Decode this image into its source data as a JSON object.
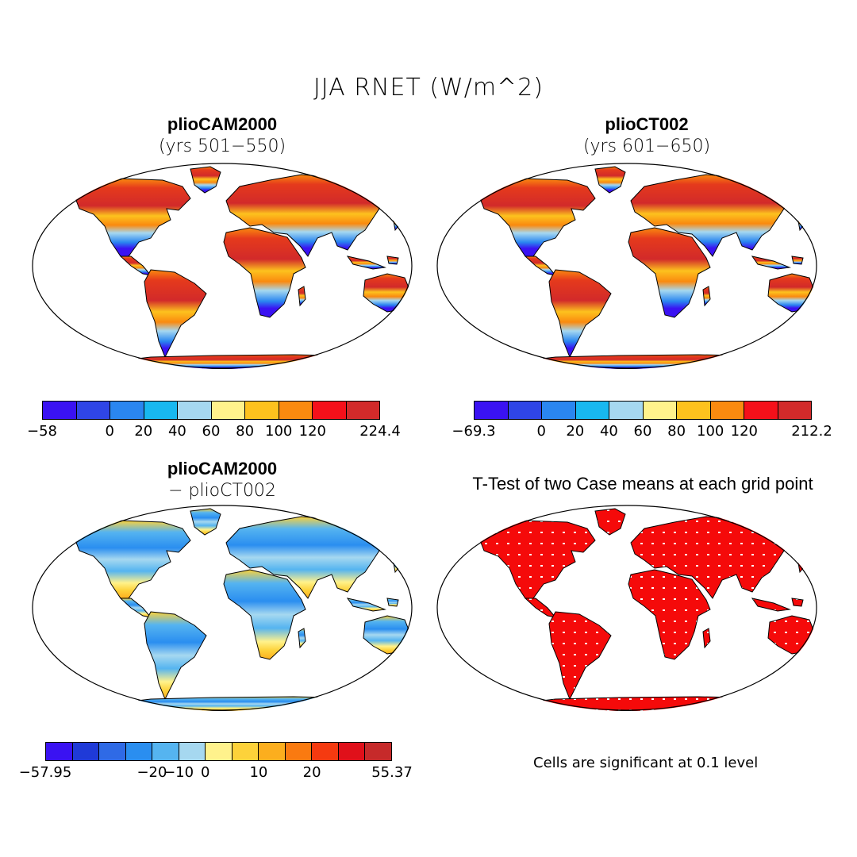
{
  "main_title": "JJA RNET (W/m^2)",
  "panels": [
    {
      "title": "plioCAM2000",
      "subtitle": "(yrs 501−550)"
    },
    {
      "title": "plioCT002",
      "subtitle": "(yrs 601−650)"
    },
    {
      "title": "plioCAM2000",
      "subtitle": "− plioCT002"
    },
    {
      "title": "T-Test of two Case means at each grid point",
      "subtitle": ""
    }
  ],
  "colorbars": [
    {
      "colors": [
        "#3a12f2",
        "#2f45e6",
        "#2a86f0",
        "#18b8f0",
        "#a6d8f0",
        "#fff28c",
        "#fdc21e",
        "#fa8a0f",
        "#f5101a",
        "#d22a2a"
      ],
      "ticks": [
        {
          "label": "−58",
          "at": 0.0
        },
        {
          "label": "0",
          "at": 0.2
        },
        {
          "label": "20",
          "at": 0.3
        },
        {
          "label": "40",
          "at": 0.4
        },
        {
          "label": "60",
          "at": 0.5
        },
        {
          "label": "80",
          "at": 0.6
        },
        {
          "label": "100",
          "at": 0.7
        },
        {
          "label": "120",
          "at": 0.8
        },
        {
          "label": "224.4",
          "at": 1.0
        }
      ]
    },
    {
      "colors": [
        "#3a12f2",
        "#2f45e6",
        "#2a86f0",
        "#18b8f0",
        "#a6d8f0",
        "#fff28c",
        "#fdc21e",
        "#fa8a0f",
        "#f5101a",
        "#d22a2a"
      ],
      "ticks": [
        {
          "label": "−69.3",
          "at": 0.0
        },
        {
          "label": "0",
          "at": 0.2
        },
        {
          "label": "20",
          "at": 0.3
        },
        {
          "label": "40",
          "at": 0.4
        },
        {
          "label": "60",
          "at": 0.5
        },
        {
          "label": "80",
          "at": 0.6
        },
        {
          "label": "100",
          "at": 0.7
        },
        {
          "label": "120",
          "at": 0.8
        },
        {
          "label": "212.2",
          "at": 1.0
        }
      ]
    },
    {
      "colors": [
        "#3a12f2",
        "#1f3ad8",
        "#2f6ae6",
        "#2a8ef0",
        "#55b4f0",
        "#a6d8f0",
        "#fff28c",
        "#fdd23a",
        "#fcae1e",
        "#fa7a10",
        "#f53a10",
        "#e0101a",
        "#c62a2a"
      ],
      "ticks": [
        {
          "label": "−57.95",
          "at": 0.0
        },
        {
          "label": "−20",
          "at": 0.3077
        },
        {
          "label": "−10",
          "at": 0.3846
        },
        {
          "label": "0",
          "at": 0.4615
        },
        {
          "label": "10",
          "at": 0.6154
        },
        {
          "label": "20",
          "at": 0.7692
        },
        {
          "label": "55.37",
          "at": 1.0
        }
      ]
    }
  ],
  "significance_note": "Cells are significant at 0.1 level",
  "legend_colors": {
    "significant": "#f50a0a",
    "not_significant": "#ffffff"
  }
}
